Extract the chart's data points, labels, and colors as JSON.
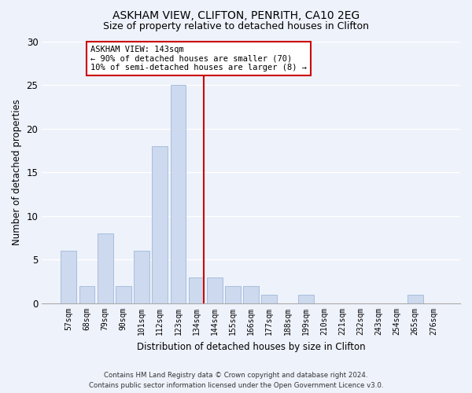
{
  "title1": "ASKHAM VIEW, CLIFTON, PENRITH, CA10 2EG",
  "title2": "Size of property relative to detached houses in Clifton",
  "xlabel": "Distribution of detached houses by size in Clifton",
  "ylabel": "Number of detached properties",
  "categories": [
    "57sqm",
    "68sqm",
    "79sqm",
    "90sqm",
    "101sqm",
    "112sqm",
    "123sqm",
    "134sqm",
    "144sqm",
    "155sqm",
    "166sqm",
    "177sqm",
    "188sqm",
    "199sqm",
    "210sqm",
    "221sqm",
    "232sqm",
    "243sqm",
    "254sqm",
    "265sqm",
    "276sqm"
  ],
  "values": [
    6,
    2,
    8,
    2,
    6,
    18,
    25,
    3,
    3,
    2,
    2,
    1,
    0,
    1,
    0,
    0,
    0,
    0,
    0,
    1,
    0
  ],
  "bar_color": "#ccd9ee",
  "bar_edge_color": "#a0b8d8",
  "vline_color": "#cc0000",
  "annotation_title": "ASKHAM VIEW: 143sqm",
  "annotation_line1": "← 90% of detached houses are smaller (70)",
  "annotation_line2": "10% of semi-detached houses are larger (8) →",
  "annotation_box_color": "#ffffff",
  "annotation_box_edge": "#cc0000",
  "ylim": [
    0,
    30
  ],
  "yticks": [
    0,
    5,
    10,
    15,
    20,
    25,
    30
  ],
  "footer1": "Contains HM Land Registry data © Crown copyright and database right 2024.",
  "footer2": "Contains public sector information licensed under the Open Government Licence v3.0.",
  "bg_color": "#eef2fb"
}
